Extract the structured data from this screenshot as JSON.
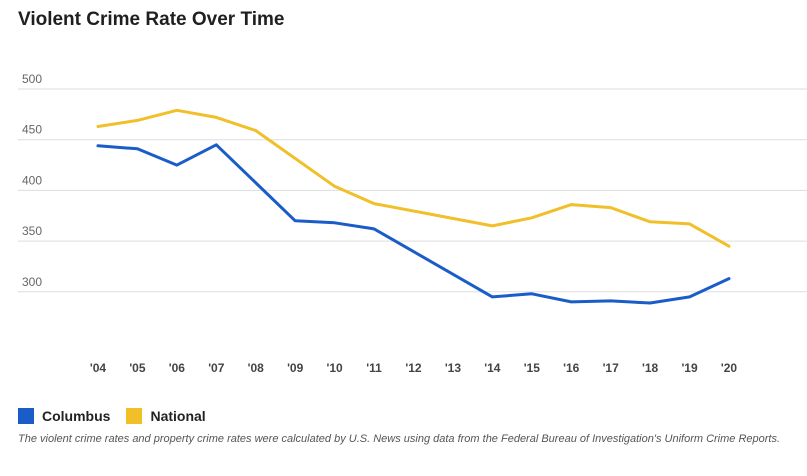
{
  "page_title": "Violent Crime Rate Over Time",
  "note": "The violent crime rates and property crime rates were calculated by U.S. News using data from the Federal Bureau of Investigation's Uniform Crime Reports.",
  "chart_data": {
    "type": "line",
    "title": "Violent Crime Rate Over Time",
    "xlabel": "",
    "ylabel": "",
    "categories": [
      "'04",
      "'05",
      "'06",
      "'07",
      "'08",
      "'09",
      "'10",
      "'11",
      "'12",
      "'13",
      "'14",
      "'15",
      "'16",
      "'17",
      "'18",
      "'19",
      "'20"
    ],
    "yticks": [
      "500",
      "450",
      "400",
      "350",
      "300"
    ],
    "ylim": [
      250,
      500
    ],
    "grid": true,
    "legend_position": "bottom-left",
    "series": [
      {
        "name": "Columbus",
        "color": "#1a5cc8",
        "values": [
          444,
          441,
          425,
          445,
          null,
          370,
          368,
          362,
          null,
          null,
          295,
          298,
          290,
          291,
          289,
          295,
          313
        ]
      },
      {
        "name": "National",
        "color": "#f0bf2a",
        "values": [
          463,
          469,
          479,
          472,
          459,
          null,
          404,
          387,
          null,
          null,
          365,
          373,
          386,
          383,
          369,
          367,
          345
        ]
      }
    ]
  },
  "colors": {
    "gridline": "#dddddd",
    "tick_text": "#666666",
    "x_tick_text": "#444444"
  }
}
